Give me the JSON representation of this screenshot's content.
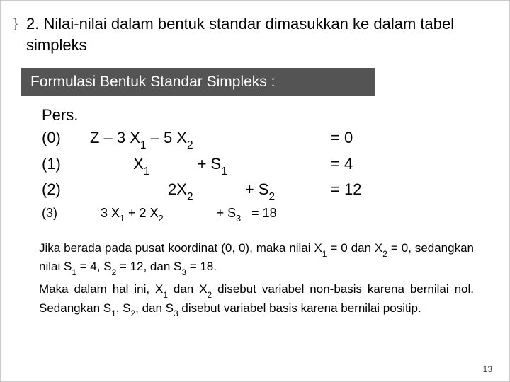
{
  "bullet_glyph": "}",
  "title": "2.  Nilai-nilai dalam bentuk standar dimasukkan ke dalam tabel simpleks",
  "section_heading": "Formulasi Bentuk Standar Simpleks :",
  "equations": {
    "header": "Pers.",
    "rows": [
      {
        "num": "(0)",
        "expr_html": "Z – 3 X<span class='sub'>1</span> – 5 X<span class='sub'>2</span>",
        "rhs": "= 0",
        "small": false,
        "pad": 0
      },
      {
        "num": "(1)",
        "expr_html": "&nbsp;&nbsp;&nbsp;&nbsp;&nbsp;&nbsp;&nbsp;&nbsp;&nbsp;&nbsp;X<span class='sub'>1</span>&nbsp;&nbsp;&nbsp;&nbsp;&nbsp;&nbsp;&nbsp;&nbsp;&nbsp;&nbsp;&nbsp;+ S<span class='sub'>1</span>",
        "rhs": "= 4",
        "small": false,
        "pad": 0
      },
      {
        "num": "(2)",
        "expr_html": "&nbsp;&nbsp;&nbsp;&nbsp;&nbsp;&nbsp;&nbsp;&nbsp;&nbsp;&nbsp;&nbsp;&nbsp;&nbsp;&nbsp;&nbsp;&nbsp;&nbsp;&nbsp;2X<span class='sub'>2</span>&nbsp;&nbsp;&nbsp;&nbsp;&nbsp;&nbsp;&nbsp;&nbsp;&nbsp;&nbsp;&nbsp;&nbsp;+ S<span class='sub'>2</span>",
        "rhs": "= 12",
        "small": false,
        "pad": 0
      },
      {
        "num": "(3)",
        "expr_html": "&nbsp;&nbsp;&nbsp;3 X<span class='sub'>1</span> + 2 X<span class='sub'>2</span>&nbsp;&nbsp;&nbsp;&nbsp;&nbsp;&nbsp;&nbsp;&nbsp;&nbsp;&nbsp;&nbsp;&nbsp;&nbsp;&nbsp;&nbsp;+ S<span class='sub'>3</span>&nbsp;&nbsp;&nbsp;= 18",
        "rhs": "",
        "small": true,
        "pad": 0
      }
    ]
  },
  "paragraphs": [
    "Jika berada pada pusat koordinat (0, 0), maka nilai X<span class='sub'>1</span> = 0 dan X<span class='sub'>2</span> = 0, sedangkan nilai S<span class='sub'>1</span> = 4, S<span class='sub'>2</span> = 12, dan S<span class='sub'>3</span> = 18.",
    "Maka dalam hal ini, X<span class='sub'>1</span> dan X<span class='sub'>2</span> disebut variabel non-basis karena bernilai nol. Sedangkan S<span class='sub'>1</span>, S<span class='sub'>2</span>, dan S<span class='sub'>3</span> disebut variabel basis karena bernilai positip."
  ],
  "page_number": "13",
  "colors": {
    "section_bg": "#545454",
    "section_fg": "#ffffff",
    "text": "#000000",
    "bullet": "#6a6a6a",
    "page_bg": "#ffffff"
  }
}
